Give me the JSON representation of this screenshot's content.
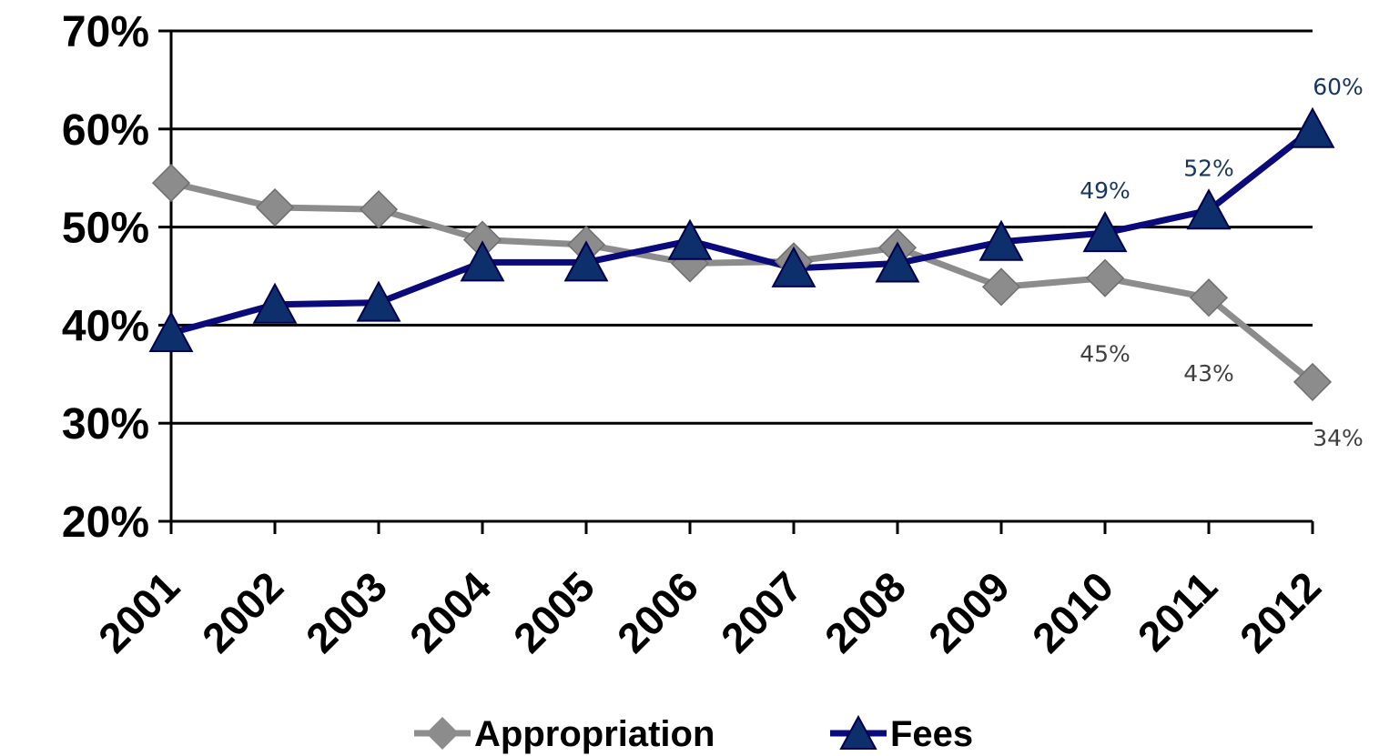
{
  "chart_data": {
    "type": "line",
    "title": "",
    "xlabel": "",
    "ylabel": "",
    "categories": [
      "2001",
      "2002",
      "2003",
      "2004",
      "2005",
      "2006",
      "2007",
      "2008",
      "2009",
      "2010",
      "2011",
      "2012"
    ],
    "ylim": [
      20,
      70
    ],
    "yticks": [
      20,
      30,
      40,
      50,
      60,
      70
    ],
    "ytick_labels": [
      "20%",
      "30%",
      "40%",
      "50%",
      "60%",
      "70%"
    ],
    "grid": "horizontal",
    "legend_position": "bottom",
    "series": [
      {
        "name": "Appropriation",
        "color": "#8c8c8c",
        "marker": "diamond",
        "values": [
          54.5,
          52.0,
          51.8,
          48.7,
          48.2,
          46.3,
          46.5,
          47.9,
          43.9,
          44.8,
          42.8,
          34.2
        ],
        "data_labels": [
          {
            "index": 9,
            "text": "45%"
          },
          {
            "index": 10,
            "text": "43%"
          },
          {
            "index": 11,
            "text": "34%"
          }
        ]
      },
      {
        "name": "Fees",
        "color": "#0a0a7a",
        "marker": "triangle",
        "values": [
          39.2,
          42.1,
          42.3,
          46.4,
          46.4,
          48.6,
          45.8,
          46.3,
          48.5,
          49.4,
          51.7,
          60.0
        ],
        "data_labels": [
          {
            "index": 9,
            "text": "49%"
          },
          {
            "index": 10,
            "text": "52%"
          },
          {
            "index": 11,
            "text": "60%"
          }
        ]
      }
    ]
  }
}
